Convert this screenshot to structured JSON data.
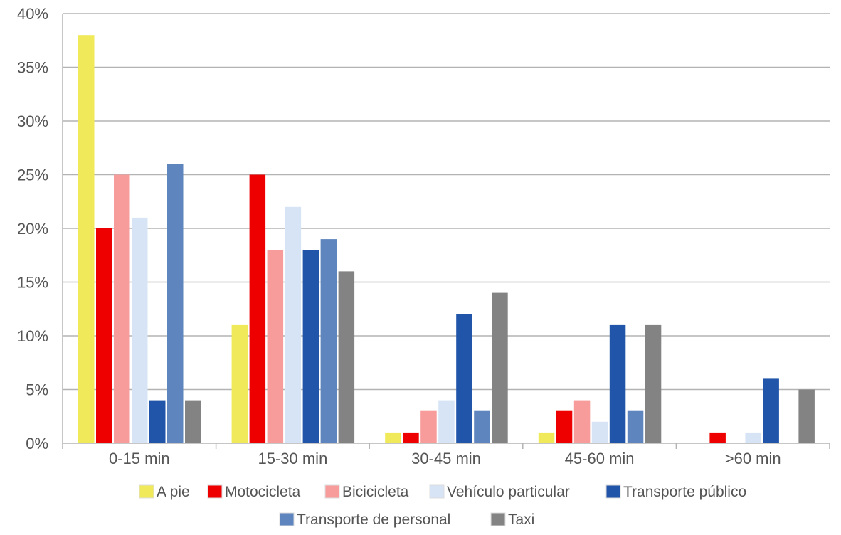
{
  "chart_data": {
    "type": "bar",
    "title": "",
    "xlabel": "",
    "ylabel": "",
    "categories": [
      "0-15 min",
      "15-30 min",
      "30-45 min",
      "45-60 min",
      ">60 min"
    ],
    "y_ticks": [
      "0%",
      "5%",
      "10%",
      "15%",
      "20%",
      "25%",
      "30%",
      "35%",
      "40%"
    ],
    "ylim": [
      0,
      40
    ],
    "grid": true,
    "legend_position": "bottom",
    "series": [
      {
        "name": "A pie",
        "color": "#f0ea5a",
        "values": [
          38,
          11,
          1,
          1,
          0
        ]
      },
      {
        "name": "Motocicleta",
        "color": "#ee0000",
        "values": [
          20,
          25,
          1,
          3,
          1
        ]
      },
      {
        "name": "Bicicicleta",
        "color": "#f79b9b",
        "values": [
          25,
          18,
          3,
          4,
          0
        ]
      },
      {
        "name": "Vehículo particular",
        "color": "#d6e4f6",
        "values": [
          21,
          22,
          4,
          2,
          1
        ]
      },
      {
        "name": "Transporte público",
        "color": "#2155a9",
        "values": [
          4,
          18,
          12,
          11,
          6
        ]
      },
      {
        "name": "Transporte de personal",
        "color": "#5e85be",
        "values": [
          26,
          19,
          3,
          3,
          0
        ]
      },
      {
        "name": "Taxi",
        "color": "#838383",
        "values": [
          4,
          16,
          14,
          11,
          5
        ]
      }
    ]
  }
}
